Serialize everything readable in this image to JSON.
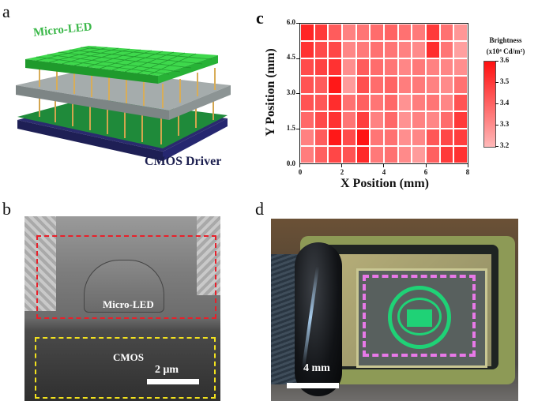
{
  "panels": {
    "a": {
      "letter": "a",
      "top_label": "Micro-LED",
      "bottom_label": "CMOS Driver",
      "colors": {
        "led": "#2ec43c",
        "interposer": "#9ca3a3",
        "pcb": "#1f8a3a",
        "substrate": "#2a2b6e",
        "pins": "#d3a54e",
        "label_led": "#3cb84a",
        "label_cmos": "#1c1f4f"
      }
    },
    "b": {
      "letter": "b",
      "red_box_label": "Micro-LED",
      "yellow_box_label": "CMOS",
      "scale_bar_label": "2 μm",
      "colors": {
        "red_box": "#e8202a",
        "yellow_box": "#f2e21e"
      }
    },
    "c": {
      "letter": "c",
      "colorbar_title_line1": "Brightness",
      "colorbar_title_line2": "(x10⁴ Cd/m²)",
      "colorbar_ticks": [
        "3.6",
        "3.5",
        "3.4",
        "3.3",
        "3.2"
      ],
      "yticks": [
        "6.0",
        "4.5",
        "3.0",
        "1.5",
        "0.0"
      ],
      "xticks": [
        "0",
        "2",
        "4",
        "6",
        "8"
      ],
      "xlabel": "X Position (mm)",
      "ylabel": "Y Position (mm)"
    },
    "d": {
      "letter": "d",
      "scale_bar_label": "4 mm",
      "colors": {
        "emblem": "#1fd276",
        "frame": "#e879e8"
      }
    }
  },
  "chart_data": {
    "type": "heatmap",
    "title": "",
    "xlabel": "X Position (mm)",
    "ylabel": "Y Position (mm)",
    "xlim": [
      0,
      8
    ],
    "ylim": [
      0,
      6
    ],
    "xticks": [
      0,
      2,
      4,
      6,
      8
    ],
    "yticks": [
      0.0,
      1.5,
      3.0,
      4.5,
      6.0
    ],
    "n_cols": 12,
    "n_rows": 8,
    "colorbar": {
      "label": "Brightness (x10^4 Cd/m^2)",
      "range": [
        3.2,
        3.6
      ],
      "ticks": [
        3.2,
        3.3,
        3.4,
        3.5,
        3.6
      ],
      "low_color": "#ffb8b8",
      "high_color": "#ff1010"
    },
    "rows_top_to_bottom": [
      [
        3.55,
        3.5,
        3.42,
        3.33,
        3.36,
        3.38,
        3.4,
        3.37,
        3.35,
        3.5,
        3.37,
        3.28
      ],
      [
        3.52,
        3.46,
        3.47,
        3.32,
        3.35,
        3.37,
        3.36,
        3.33,
        3.31,
        3.53,
        3.36,
        3.26
      ],
      [
        3.46,
        3.48,
        3.52,
        3.3,
        3.42,
        3.38,
        3.36,
        3.32,
        3.35,
        3.33,
        3.32,
        3.3
      ],
      [
        3.44,
        3.42,
        3.58,
        3.27,
        3.45,
        3.38,
        3.4,
        3.34,
        3.35,
        3.33,
        3.31,
        3.37
      ],
      [
        3.44,
        3.43,
        3.53,
        3.37,
        3.41,
        3.36,
        3.39,
        3.29,
        3.34,
        3.36,
        3.32,
        3.44
      ],
      [
        3.39,
        3.46,
        3.52,
        3.36,
        3.49,
        3.33,
        3.39,
        3.29,
        3.33,
        3.32,
        3.38,
        3.5
      ],
      [
        3.33,
        3.42,
        3.58,
        3.46,
        3.59,
        3.36,
        3.37,
        3.3,
        3.32,
        3.43,
        3.47,
        3.49
      ],
      [
        3.34,
        3.41,
        3.47,
        3.44,
        3.54,
        3.35,
        3.37,
        3.31,
        3.27,
        3.41,
        3.5,
        3.52
      ]
    ]
  }
}
